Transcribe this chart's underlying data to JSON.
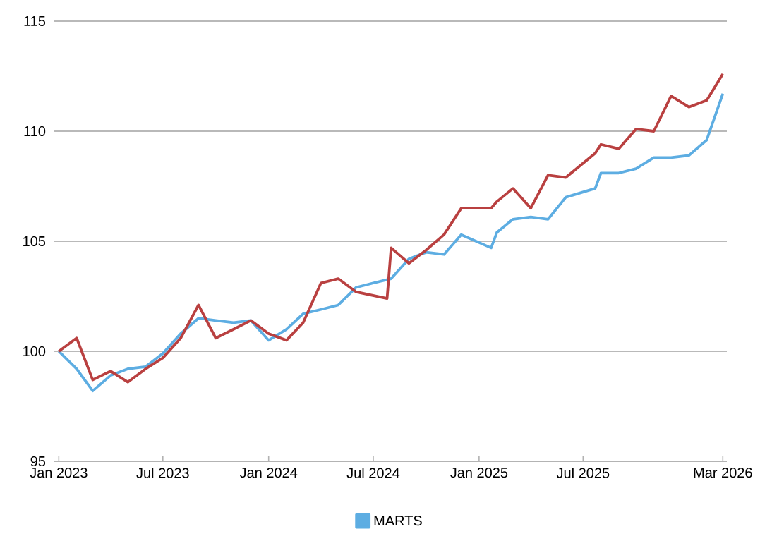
{
  "chart_data": {
    "type": "line",
    "xlim": [
      "2022-12-23",
      "2026-03-08"
    ],
    "xticks": [
      {
        "value": "2023-01",
        "label": "Jan 2023"
      },
      {
        "value": "2023-07",
        "label": "Jul 2023"
      },
      {
        "value": "2024-01",
        "label": "Jan 2024"
      },
      {
        "value": "2024-07",
        "label": "Jul 2024"
      },
      {
        "value": "2025-01",
        "label": "Jan 2025"
      },
      {
        "value": "2025-07",
        "label": "Jul 2025"
      },
      {
        "value": "2026-03",
        "label": "Mar 2026"
      }
    ],
    "ylim": [
      95,
      115
    ],
    "yticks": [
      95,
      100,
      105,
      110,
      115
    ],
    "grid": "y",
    "legend": "bottom",
    "marker": "none",
    "line_style": "solid",
    "series": [
      {
        "name": "MARTS",
        "color": "#5dade2",
        "x": [
          "2023-01",
          "2023-02",
          "2023-03",
          "2023-04",
          "2023-05",
          "2023-06",
          "2023-07",
          "2023-08",
          "2023-09",
          "2023-10",
          "2023-11",
          "2023-12",
          "2024-01",
          "2024-02",
          "2024-03",
          "2024-04",
          "2024-05",
          "2024-06",
          "2024-07",
          "2024-08",
          "2024-09",
          "2024-10",
          "2024-11",
          "2024-12",
          "2025-01-22",
          "2025-02",
          "2025-03",
          "2025-04",
          "2025-05",
          "2025-06",
          "2025-07-22",
          "2025-08",
          "2025-09",
          "2025-10",
          "2025-11",
          "2025-12",
          "2026-01",
          "2026-02",
          "2026-03"
        ],
        "values": [
          100.0,
          99.2,
          98.2,
          98.9,
          99.2,
          99.3,
          99.9,
          100.8,
          101.5,
          101.4,
          101.3,
          101.4,
          100.5,
          101.0,
          101.7,
          101.9,
          102.1,
          102.9,
          103.1,
          103.3,
          104.2,
          104.5,
          104.4,
          105.3,
          104.7,
          105.4,
          106.0,
          106.1,
          106.0,
          107.0,
          107.4,
          108.1,
          108.1,
          108.3,
          108.8,
          108.8,
          108.9,
          109.6,
          111.7
        ]
      },
      {
        "color": "#b94040",
        "x": [
          "2023-01",
          "2023-02",
          "2023-03",
          "2023-04",
          "2023-05",
          "2023-06",
          "2023-07",
          "2023-08",
          "2023-09",
          "2023-10",
          "2023-11",
          "2023-12",
          "2024-01",
          "2024-02",
          "2024-03",
          "2024-04",
          "2024-05",
          "2024-06",
          "2024-07-25",
          "2024-08",
          "2024-09",
          "2024-10",
          "2024-11",
          "2024-12",
          "2025-01-22",
          "2025-02",
          "2025-03",
          "2025-04",
          "2025-05",
          "2025-06",
          "2025-07-22",
          "2025-08",
          "2025-09",
          "2025-10",
          "2025-11",
          "2025-12",
          "2026-01",
          "2026-02",
          "2026-03"
        ],
        "values": [
          100.0,
          100.6,
          98.7,
          99.1,
          98.6,
          99.2,
          99.7,
          100.6,
          102.1,
          100.6,
          101.0,
          101.4,
          100.8,
          100.5,
          101.3,
          103.1,
          103.3,
          102.7,
          102.4,
          104.7,
          104.0,
          104.6,
          105.3,
          106.5,
          106.5,
          106.8,
          107.4,
          106.5,
          108.0,
          107.9,
          109.0,
          109.4,
          109.2,
          110.1,
          110.0,
          111.6,
          111.1,
          111.4,
          112.6
        ]
      }
    ]
  }
}
